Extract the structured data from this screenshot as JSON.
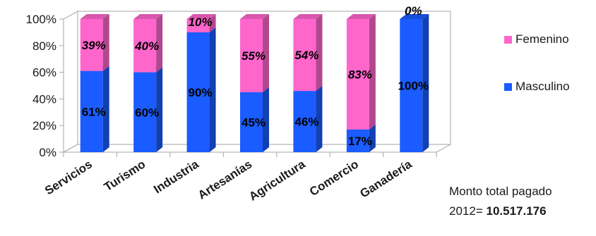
{
  "chart_data": {
    "type": "bar",
    "stacked": true,
    "percent": true,
    "style": "3d",
    "categories": [
      "Servicios",
      "Turismo",
      "Industria",
      "Artesanías",
      "Agricultura",
      "Comercio",
      "Ganadería"
    ],
    "series": [
      {
        "name": "Masculino",
        "values": [
          61,
          60,
          90,
          45,
          46,
          17,
          100
        ],
        "color": "#1a5cff",
        "labels": [
          "61%",
          "60%",
          "90%",
          "45%",
          "46%",
          "17%",
          "100%"
        ]
      },
      {
        "name": "Femenino",
        "values": [
          39,
          40,
          10,
          55,
          54,
          83,
          0
        ],
        "color": "#ff66cc",
        "labels": [
          "39%",
          "40%",
          "10%",
          "55%",
          "54%",
          "83%",
          "0%"
        ]
      }
    ],
    "ylim": [
      0,
      100
    ],
    "yticks": [
      "0%",
      "20%",
      "40%",
      "60%",
      "80%",
      "100%"
    ],
    "grid": false,
    "legend_position": "right"
  },
  "legend": {
    "femenino": "Femenino",
    "masculino": "Masculino"
  },
  "note": {
    "line1": "Monto total pagado",
    "line2_prefix": "2012= ",
    "line2_value": "10.517.176"
  }
}
